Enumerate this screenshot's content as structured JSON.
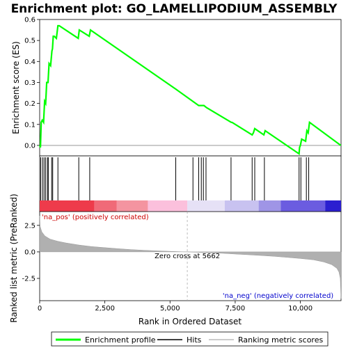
{
  "chart_data": {
    "type": "line",
    "title": "Enrichment plot: GO_LAMELLIPODIUM_ASSEMBLY",
    "top_panel": {
      "ylabel": "Enrichment score (ES)",
      "ylim": [
        -0.05,
        0.6
      ],
      "yticks": [
        "0.0",
        "0.1",
        "0.2",
        "0.3",
        "0.4",
        "0.5",
        "0.6"
      ],
      "ytick_values": [
        0.0,
        0.1,
        0.2,
        0.3,
        0.4,
        0.5,
        0.6
      ],
      "series": [
        {
          "name": "Enrichment profile",
          "color": "#00ff00",
          "x": [
            0,
            30,
            60,
            100,
            150,
            190,
            230,
            270,
            320,
            360,
            420,
            470,
            490,
            520,
            560,
            640,
            700,
            750,
            1480,
            1520,
            1900,
            1950,
            5200,
            6100,
            6180,
            6300,
            6400,
            7350,
            7380,
            8150,
            8200,
            8250,
            8600,
            8650,
            9950,
            9970,
            10000,
            10050,
            10200,
            10250,
            10300,
            10350,
            11550
          ],
          "y": [
            0.0,
            -0.01,
            0.11,
            0.12,
            0.11,
            0.21,
            0.2,
            0.3,
            0.3,
            0.39,
            0.38,
            0.45,
            0.46,
            0.52,
            0.52,
            0.51,
            0.57,
            0.57,
            0.51,
            0.55,
            0.52,
            0.55,
            0.27,
            0.19,
            0.19,
            0.19,
            0.18,
            0.11,
            0.11,
            0.05,
            0.06,
            0.08,
            0.05,
            0.07,
            -0.04,
            -0.01,
            0.0,
            0.03,
            0.02,
            0.07,
            0.06,
            0.11,
            0.0
          ]
        }
      ]
    },
    "hits": {
      "name": "Hits",
      "x": [
        40,
        110,
        170,
        230,
        300,
        330,
        460,
        500,
        700,
        1500,
        1920,
        5220,
        5880,
        6100,
        6200,
        6280,
        6380,
        7340,
        8150,
        8250,
        8620,
        9950,
        10020,
        10230,
        10320
      ]
    },
    "bottom_panel": {
      "ylabel": "Ranked list metric (PreRanked)",
      "ylim": [
        -4.6,
        3.8
      ],
      "yticks": [
        "2.5",
        "0.0",
        "-2.5"
      ],
      "ytick_values": [
        2.5,
        0.0,
        -2.5
      ],
      "series": [
        {
          "name": "Ranking metric scores",
          "color": "#b0b0b0",
          "x": [
            0,
            20,
            80,
            200,
            400,
            700,
            1000,
            1500,
            2000,
            2500,
            3000,
            3500,
            4000,
            4500,
            5000,
            5500,
            5662,
            6000,
            6500,
            7000,
            7500,
            8000,
            8500,
            9000,
            9500,
            10000,
            10500,
            10900,
            11200,
            11400,
            11480,
            11530,
            11560
          ],
          "y": [
            3.4,
            2.4,
            1.9,
            1.5,
            1.2,
            1.0,
            0.85,
            0.65,
            0.5,
            0.4,
            0.3,
            0.22,
            0.15,
            0.1,
            0.05,
            0.01,
            0.0,
            -0.03,
            -0.08,
            -0.13,
            -0.2,
            -0.27,
            -0.34,
            -0.42,
            -0.52,
            -0.62,
            -0.75,
            -0.95,
            -1.2,
            -1.55,
            -1.9,
            -2.5,
            -4.4
          ]
        }
      ],
      "zero_cross_label": "Zero cross at 5662",
      "zero_cross": 5662,
      "pos_label": "'na_pos' (positively correlated)",
      "neg_label": "'na_neg' (negatively correlated)"
    },
    "color_bar": [
      {
        "from": 0,
        "to": 2100,
        "color": "#ee3b4b"
      },
      {
        "from": 2100,
        "to": 2950,
        "color": "#f06a78"
      },
      {
        "from": 2950,
        "to": 4150,
        "color": "#f494a0"
      },
      {
        "from": 4150,
        "to": 5662,
        "color": "#fbc0dc"
      },
      {
        "from": 5662,
        "to": 7100,
        "color": "#e6e1f6"
      },
      {
        "from": 7100,
        "to": 8400,
        "color": "#c8c2f0"
      },
      {
        "from": 8400,
        "to": 9250,
        "color": "#9f95e6"
      },
      {
        "from": 9250,
        "to": 10950,
        "color": "#6b5ce0"
      },
      {
        "from": 10950,
        "to": 11560,
        "color": "#2b1fd0"
      }
    ],
    "xlabel": "Rank in Ordered Dataset",
    "xlim": [
      0,
      11560
    ],
    "xticks": [
      "0",
      "2,500",
      "5,000",
      "7,500",
      "10,000"
    ],
    "xtick_values": [
      0,
      2500,
      5000,
      7500,
      10000
    ],
    "legend": {
      "placement": "bottom",
      "items": [
        "Enrichment profile",
        "Hits",
        "Ranking metric scores"
      ]
    }
  }
}
